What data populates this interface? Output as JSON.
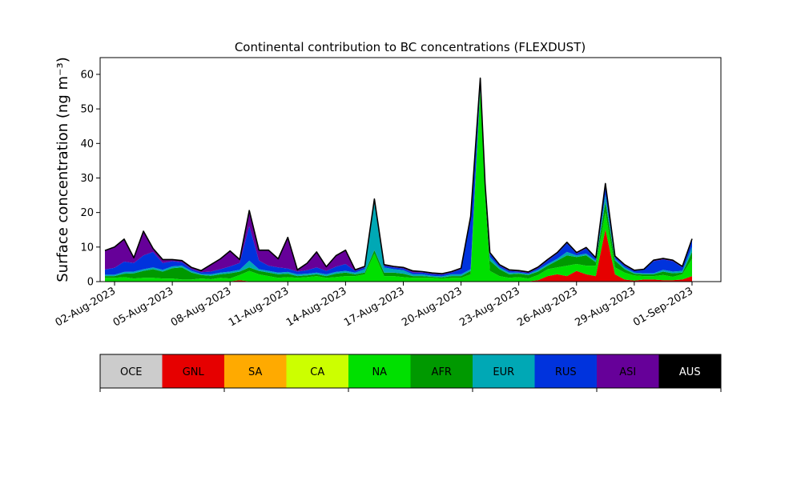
{
  "chart_data": {
    "type": "area",
    "title": "Continental contribution to BC concentrations (FLEXDUST)",
    "ylabel": "Surface concentration (ng m⁻³)",
    "xlabel": "",
    "ylim": [
      0,
      63
    ],
    "yticks": [
      0,
      10,
      20,
      30,
      40,
      50,
      60
    ],
    "xlim": [
      "2023-08-01 06:00",
      "2023-09-02 12:00"
    ],
    "xticks": [
      "02-Aug-2023",
      "05-Aug-2023",
      "08-Aug-2023",
      "11-Aug-2023",
      "14-Aug-2023",
      "17-Aug-2023",
      "20-Aug-2023",
      "23-Aug-2023",
      "26-Aug-2023",
      "29-Aug-2023",
      "01-Sep-2023"
    ],
    "grid": false,
    "stacked": true,
    "x": [
      "2023-08-01 12:00",
      "2023-08-02 00:00",
      "2023-08-02 12:00",
      "2023-08-03 00:00",
      "2023-08-03 12:00",
      "2023-08-04 00:00",
      "2023-08-04 12:00",
      "2023-08-05 00:00",
      "2023-08-05 12:00",
      "2023-08-06 00:00",
      "2023-08-06 12:00",
      "2023-08-07 00:00",
      "2023-08-07 12:00",
      "2023-08-08 00:00",
      "2023-08-08 12:00",
      "2023-08-09 00:00",
      "2023-08-09 12:00",
      "2023-08-10 00:00",
      "2023-08-10 12:00",
      "2023-08-11 00:00",
      "2023-08-11 12:00",
      "2023-08-12 00:00",
      "2023-08-12 12:00",
      "2023-08-13 00:00",
      "2023-08-13 12:00",
      "2023-08-14 00:00",
      "2023-08-14 12:00",
      "2023-08-15 00:00",
      "2023-08-15 12:00",
      "2023-08-16 00:00",
      "2023-08-16 12:00",
      "2023-08-17 00:00",
      "2023-08-17 12:00",
      "2023-08-18 00:00",
      "2023-08-18 12:00",
      "2023-08-19 00:00",
      "2023-08-19 12:00",
      "2023-08-20 00:00",
      "2023-08-20 12:00",
      "2023-08-21 00:00",
      "2023-08-21 06:00",
      "2023-08-21 12:00",
      "2023-08-22 00:00",
      "2023-08-22 12:00",
      "2023-08-23 00:00",
      "2023-08-23 12:00",
      "2023-08-24 00:00",
      "2023-08-24 12:00",
      "2023-08-25 00:00",
      "2023-08-25 12:00",
      "2023-08-26 00:00",
      "2023-08-26 12:00",
      "2023-08-27 00:00",
      "2023-08-27 12:00",
      "2023-08-28 00:00",
      "2023-08-28 12:00",
      "2023-08-29 00:00",
      "2023-08-29 12:00",
      "2023-08-30 00:00",
      "2023-08-30 12:00",
      "2023-08-31 00:00",
      "2023-08-31 12:00",
      "2023-09-01 00:00"
    ],
    "series": [
      {
        "name": "OCE",
        "color": "#cccccc",
        "values": [
          0.1,
          0.1,
          0.1,
          0.1,
          0.1,
          0.1,
          0.1,
          0.1,
          0.1,
          0.1,
          0.1,
          0.1,
          0.1,
          0.1,
          0.1,
          0.1,
          0.1,
          0.1,
          0.1,
          0.1,
          0.1,
          0.1,
          0.1,
          0.1,
          0.1,
          0.1,
          0.1,
          0.1,
          0.1,
          0.1,
          0.1,
          0.1,
          0.1,
          0.1,
          0.1,
          0.1,
          0.1,
          0.1,
          0.1,
          0.1,
          0.1,
          0.1,
          0.1,
          0.1,
          0.1,
          0.1,
          0.1,
          0.1,
          0.1,
          0.1,
          0.1,
          0.1,
          0.1,
          0.1,
          0.1,
          0.1,
          0.1,
          0.1,
          0.1,
          0.1,
          0.1,
          0.1,
          0.1
        ]
      },
      {
        "name": "GNL",
        "color": "#e60000",
        "values": [
          0,
          0,
          0,
          0,
          0,
          0,
          0,
          0,
          0,
          0,
          0,
          0,
          0,
          0,
          0.3,
          0,
          0,
          0,
          0,
          0,
          0,
          0,
          0,
          0,
          0,
          0,
          0,
          0,
          0,
          0,
          0,
          0,
          0,
          0,
          0,
          0,
          0,
          0,
          0,
          0,
          0,
          0,
          0,
          0,
          0,
          0,
          0.3,
          1.5,
          2.0,
          1.5,
          3.0,
          2.0,
          1.5,
          15.0,
          2.0,
          0.5,
          0.2,
          0.5,
          0.5,
          0.3,
          0.3,
          0.5,
          1.5
        ]
      },
      {
        "name": "SA",
        "color": "#ffaa00",
        "values": [
          0,
          0,
          0,
          0,
          0,
          0,
          0,
          0,
          0,
          0,
          0,
          0,
          0,
          0,
          0,
          0,
          0,
          0,
          0,
          0,
          0,
          0,
          0,
          0,
          0,
          0,
          0,
          0,
          0,
          0,
          0,
          0,
          0,
          0,
          0,
          0,
          0,
          0,
          0,
          0,
          0,
          0,
          0,
          0,
          0,
          0,
          0,
          0,
          0,
          0,
          0,
          0,
          0,
          0,
          0,
          0,
          0,
          0,
          0,
          0,
          0,
          0,
          0
        ]
      },
      {
        "name": "CA",
        "color": "#ccff00",
        "values": [
          0,
          0,
          0,
          0,
          0,
          0,
          0,
          0,
          0,
          0,
          0,
          0,
          0,
          0,
          0,
          0,
          0,
          0,
          0,
          0,
          0,
          0,
          0,
          0,
          0,
          0,
          0,
          0,
          0,
          0,
          0,
          0,
          0,
          0,
          0,
          0,
          0,
          0,
          0,
          0,
          0,
          0,
          0,
          0,
          0,
          0,
          0,
          0,
          0,
          0,
          0,
          0,
          0,
          0,
          0,
          0,
          0,
          0,
          0,
          0,
          0,
          0,
          0
        ]
      },
      {
        "name": "NA",
        "color": "#00e000",
        "values": [
          1.0,
          1.0,
          1.2,
          0.8,
          1.0,
          1.0,
          0.8,
          0.8,
          0.5,
          0.5,
          0.8,
          0.6,
          1.0,
          0.8,
          1.5,
          3.0,
          2.0,
          1.5,
          1.0,
          1.2,
          1.0,
          1.2,
          1.5,
          1.0,
          1.2,
          1.5,
          1.5,
          2.0,
          8.0,
          1.5,
          1.5,
          1.2,
          1.0,
          1.0,
          1.0,
          0.8,
          1.0,
          1.0,
          2.0,
          55.0,
          25.0,
          3.0,
          1.5,
          1.0,
          1.2,
          0.8,
          1.5,
          2.0,
          2.0,
          3.0,
          2.0,
          2.5,
          3.0,
          5.0,
          2.0,
          2.0,
          1.5,
          1.0,
          1.0,
          1.5,
          1.0,
          1.5,
          5.0
        ]
      },
      {
        "name": "AFR",
        "color": "#009900",
        "values": [
          0.5,
          0.5,
          1.0,
          1.5,
          2.0,
          2.5,
          2.0,
          3.0,
          3.5,
          2.0,
          1.0,
          1.0,
          1.0,
          1.5,
          1.0,
          1.0,
          1.0,
          1.0,
          1.0,
          1.0,
          0.5,
          0.5,
          0.5,
          0.5,
          1.0,
          1.0,
          0.5,
          0.5,
          1.0,
          1.0,
          1.0,
          1.0,
          0.5,
          0.5,
          0.3,
          0.3,
          0.5,
          0.5,
          1.0,
          1.0,
          1.0,
          3.0,
          2.0,
          1.0,
          1.0,
          1.0,
          1.0,
          1.0,
          2.0,
          3.0,
          2.0,
          3.0,
          1.0,
          3.0,
          2.0,
          1.0,
          0.5,
          0.5,
          0.5,
          1.0,
          1.0,
          0.5,
          2.0
        ]
      },
      {
        "name": "EUR",
        "color": "#00a8b5",
        "values": [
          0.4,
          0.4,
          0.5,
          0.5,
          0.5,
          0.5,
          0.5,
          0.5,
          0.5,
          0.5,
          0.3,
          0.4,
          0.5,
          0.5,
          0.5,
          2.0,
          0.5,
          0.5,
          0.5,
          0.5,
          0.5,
          0.5,
          0.5,
          0.5,
          0.5,
          0.5,
          0.5,
          1.0,
          14.0,
          1.5,
          1.0,
          1.0,
          0.5,
          0.5,
          0.3,
          0.3,
          0.5,
          0.5,
          0.5,
          1.0,
          1.0,
          1.0,
          0.5,
          0.5,
          0.3,
          0.3,
          0.5,
          0.5,
          0.5,
          1.0,
          0.5,
          0.5,
          0.5,
          2.0,
          0.5,
          0.5,
          0.3,
          0.3,
          0.3,
          0.5,
          0.5,
          0.5,
          1.5
        ]
      },
      {
        "name": "RUS",
        "color": "#0033dd",
        "values": [
          1.5,
          2.0,
          3.0,
          2.5,
          4.0,
          4.5,
          2.0,
          1.5,
          1.0,
          0.5,
          0.5,
          0.8,
          1.0,
          1.5,
          2.0,
          10.0,
          2.5,
          1.5,
          1.5,
          1.0,
          0.8,
          1.0,
          1.5,
          1.0,
          1.5,
          2.0,
          0.5,
          0.5,
          0.5,
          0.5,
          0.5,
          0.5,
          0.5,
          0.5,
          0.5,
          0.5,
          0.5,
          1.5,
          15.0,
          1.5,
          1.0,
          1.0,
          0.5,
          0.5,
          0.3,
          0.3,
          0.5,
          1.0,
          1.5,
          2.5,
          0.5,
          1.5,
          0.5,
          3.0,
          0.5,
          0.5,
          0.5,
          1.0,
          3.5,
          3.0,
          3.0,
          1.0,
          2.0
        ]
      },
      {
        "name": "ASI",
        "color": "#660099",
        "values": [
          5.5,
          6.0,
          6.5,
          1.5,
          7.0,
          1.0,
          1.0,
          0.5,
          0.5,
          0.5,
          0.5,
          2.0,
          3.0,
          4.5,
          1.0,
          4.5,
          3.0,
          4.5,
          2.5,
          9.0,
          0.5,
          2.0,
          4.5,
          1.2,
          3.2,
          4.0,
          0.3,
          0.3,
          0.3,
          0.3,
          0.3,
          0.3,
          0.5,
          0.3,
          0.3,
          0.3,
          0.3,
          0.3,
          0.3,
          0.3,
          0.3,
          0.3,
          0.3,
          0.3,
          0.3,
          0.3,
          0.3,
          0.3,
          0.3,
          0.3,
          0.3,
          0.3,
          0.3,
          0.3,
          0.3,
          0.3,
          0.2,
          0.2,
          0.3,
          0.3,
          0.3,
          0.3,
          0.3
        ]
      },
      {
        "name": "AUS",
        "color": "#000000",
        "values": [
          0,
          0,
          0,
          0,
          0,
          0,
          0,
          0,
          0,
          0,
          0,
          0,
          0,
          0,
          0,
          0,
          0,
          0,
          0,
          0,
          0,
          0,
          0,
          0,
          0,
          0,
          0,
          0,
          0,
          0,
          0,
          0,
          0,
          0,
          0,
          0,
          0,
          0,
          0,
          0,
          0,
          0,
          0,
          0,
          0,
          0,
          0,
          0,
          0,
          0,
          0,
          0,
          0,
          0,
          0,
          0,
          0,
          0,
          0,
          0,
          0,
          0,
          0
        ]
      }
    ],
    "legend": {
      "placement": "bottom",
      "entries": [
        "OCE",
        "GNL",
        "SA",
        "CA",
        "NA",
        "AFR",
        "EUR",
        "RUS",
        "ASI",
        "AUS"
      ],
      "text_colors": [
        "#000000",
        "#000000",
        "#000000",
        "#000000",
        "#000000",
        "#000000",
        "#000000",
        "#000000",
        "#000000",
        "#ffffff"
      ]
    }
  }
}
